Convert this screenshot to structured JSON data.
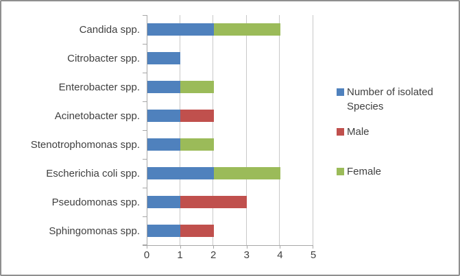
{
  "chart_data": {
    "type": "bar",
    "orientation": "horizontal",
    "stacked": true,
    "title": "",
    "categories": [
      "Candida spp.",
      "Citrobacter spp.",
      "Enterobacter spp.",
      "Acinetobacter spp.",
      "Stenotrophomonas spp.",
      "Escherichia coli spp.",
      "Pseudomonas spp.",
      "Sphingomonas spp."
    ],
    "series": [
      {
        "name": "Number of isolated Species",
        "color": "#4F81BD",
        "values": [
          2,
          1,
          1,
          1,
          1,
          2,
          1,
          1
        ]
      },
      {
        "name": "Male",
        "color": "#C0504D",
        "values": [
          0,
          0,
          0,
          1,
          0,
          0,
          2,
          1
        ]
      },
      {
        "name": "Female",
        "color": "#9BBB59",
        "values": [
          2,
          0,
          1,
          0,
          1,
          2,
          0,
          0
        ]
      }
    ],
    "x_ticks": [
      "0",
      "1",
      "2",
      "3",
      "4",
      "5"
    ],
    "xlim": [
      0,
      5
    ],
    "grid": true,
    "legend_position": "right"
  },
  "colors": {
    "axis": "#A6A6A6",
    "gridline": "#C8C8C8",
    "text": "#3F3F3F",
    "frame_border": "#8F8F8F",
    "background": "#FFFFFF"
  }
}
